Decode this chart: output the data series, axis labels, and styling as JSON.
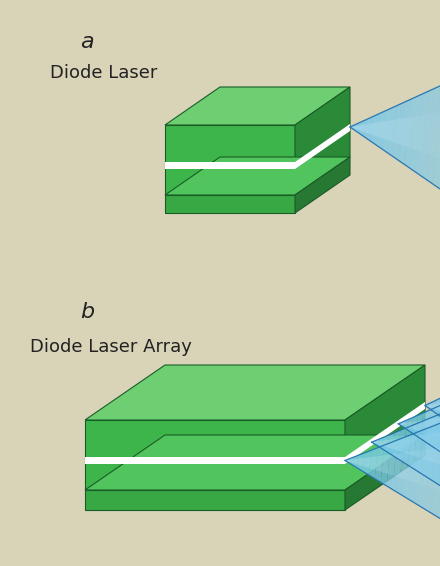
{
  "background_color": "#d9d3b8",
  "label_a": "a",
  "label_b": "b",
  "text_a": "Diode Laser",
  "text_b": "Diode Laser Array",
  "text_color": "#222222",
  "green_top": "#6ecf72",
  "green_front": "#3db54a",
  "green_side": "#2a8a38",
  "green_dark": "#1a5c28",
  "green_base_top": "#52c45e",
  "green_base_front": "#38a845",
  "green_base_side": "#267832",
  "white_stripe": "#ffffff",
  "blue_fill": "#7ac8e8",
  "blue_light": "#b8e0f5",
  "blue_mid": "#5aaed4",
  "blue_dark": "#2878b0",
  "cone_edge": "#2878b0"
}
